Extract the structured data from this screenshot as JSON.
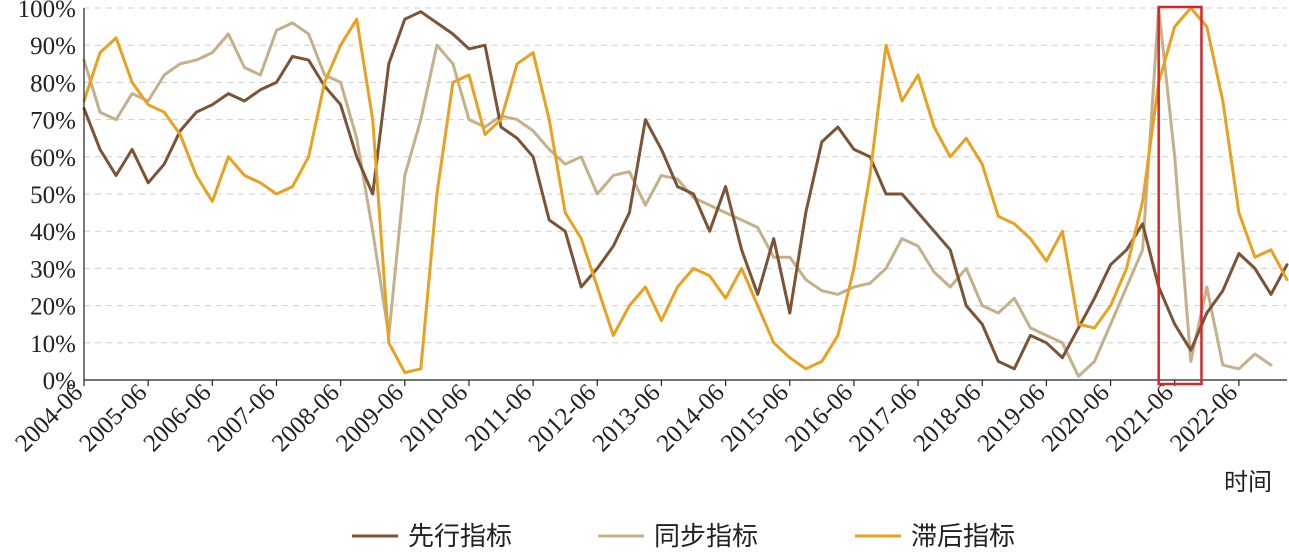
{
  "chart_data": {
    "type": "line",
    "xlabel": "时间",
    "ylabel": "",
    "ylim": [
      0,
      100
    ],
    "y_ticks": [
      "0%",
      "10%",
      "20%",
      "30%",
      "40%",
      "50%",
      "60%",
      "70%",
      "80%",
      "90%",
      "100%"
    ],
    "x_ticks": [
      "2004-06",
      "2005-06",
      "2006-06",
      "2007-06",
      "2008-06",
      "2009-06",
      "2010-06",
      "2011-06",
      "2012-06",
      "2013-06",
      "2014-06",
      "2015-06",
      "2016-06",
      "2017-06",
      "2018-06",
      "2019-06",
      "2020-06",
      "2021-06",
      "2022-06"
    ],
    "x_range": [
      "2004-06",
      "2023-03"
    ],
    "grid": "horizontal dashed",
    "legend_position": "bottom",
    "highlight_box": {
      "x_start": "2021-03",
      "x_end": "2021-11",
      "y_start": 0,
      "y_end": 100,
      "color": "#d62728"
    },
    "series": [
      {
        "name": "先行指标",
        "color": "#7b5335",
        "points": [
          [
            "2004-06",
            73
          ],
          [
            "2004-09",
            62
          ],
          [
            "2004-12",
            55
          ],
          [
            "2005-03",
            62
          ],
          [
            "2005-06",
            53
          ],
          [
            "2005-09",
            58
          ],
          [
            "2005-12",
            67
          ],
          [
            "2006-03",
            72
          ],
          [
            "2006-06",
            74
          ],
          [
            "2006-09",
            77
          ],
          [
            "2006-12",
            75
          ],
          [
            "2007-03",
            78
          ],
          [
            "2007-06",
            80
          ],
          [
            "2007-09",
            87
          ],
          [
            "2007-12",
            86
          ],
          [
            "2008-03",
            79
          ],
          [
            "2008-06",
            74
          ],
          [
            "2008-09",
            60
          ],
          [
            "2008-12",
            50
          ],
          [
            "2009-03",
            85
          ],
          [
            "2009-06",
            97
          ],
          [
            "2009-09",
            99
          ],
          [
            "2009-12",
            96
          ],
          [
            "2010-03",
            93
          ],
          [
            "2010-06",
            89
          ],
          [
            "2010-09",
            90
          ],
          [
            "2010-12",
            68
          ],
          [
            "2011-03",
            65
          ],
          [
            "2011-06",
            60
          ],
          [
            "2011-09",
            43
          ],
          [
            "2011-12",
            40
          ],
          [
            "2012-03",
            25
          ],
          [
            "2012-06",
            30
          ],
          [
            "2012-09",
            36
          ],
          [
            "2012-12",
            45
          ],
          [
            "2013-03",
            70
          ],
          [
            "2013-06",
            62
          ],
          [
            "2013-09",
            52
          ],
          [
            "2013-12",
            50
          ],
          [
            "2014-03",
            40
          ],
          [
            "2014-06",
            52
          ],
          [
            "2014-09",
            35
          ],
          [
            "2014-12",
            23
          ],
          [
            "2015-03",
            38
          ],
          [
            "2015-06",
            18
          ],
          [
            "2015-09",
            45
          ],
          [
            "2015-12",
            64
          ],
          [
            "2016-03",
            68
          ],
          [
            "2016-06",
            62
          ],
          [
            "2016-09",
            60
          ],
          [
            "2016-12",
            50
          ],
          [
            "2017-03",
            50
          ],
          [
            "2017-06",
            45
          ],
          [
            "2017-09",
            40
          ],
          [
            "2017-12",
            35
          ],
          [
            "2018-03",
            20
          ],
          [
            "2018-06",
            15
          ],
          [
            "2018-09",
            5
          ],
          [
            "2018-12",
            3
          ],
          [
            "2019-03",
            12
          ],
          [
            "2019-06",
            10
          ],
          [
            "2019-09",
            6
          ],
          [
            "2019-12",
            14
          ],
          [
            "2020-03",
            22
          ],
          [
            "2020-06",
            31
          ],
          [
            "2020-09",
            35
          ],
          [
            "2020-12",
            42
          ],
          [
            "2021-03",
            25
          ],
          [
            "2021-06",
            15
          ],
          [
            "2021-09",
            8
          ],
          [
            "2021-12",
            18
          ],
          [
            "2022-03",
            24
          ],
          [
            "2022-06",
            34
          ],
          [
            "2022-09",
            30
          ],
          [
            "2022-12",
            23
          ],
          [
            "2023-03",
            31
          ]
        ]
      },
      {
        "name": "同步指标",
        "color": "#c4b08a",
        "points": [
          [
            "2004-06",
            86
          ],
          [
            "2004-09",
            72
          ],
          [
            "2004-12",
            70
          ],
          [
            "2005-03",
            77
          ],
          [
            "2005-06",
            75
          ],
          [
            "2005-09",
            82
          ],
          [
            "2005-12",
            85
          ],
          [
            "2006-03",
            86
          ],
          [
            "2006-06",
            88
          ],
          [
            "2006-09",
            93
          ],
          [
            "2006-12",
            84
          ],
          [
            "2007-03",
            82
          ],
          [
            "2007-06",
            94
          ],
          [
            "2007-09",
            96
          ],
          [
            "2007-12",
            93
          ],
          [
            "2008-03",
            82
          ],
          [
            "2008-06",
            80
          ],
          [
            "2008-09",
            65
          ],
          [
            "2008-12",
            40
          ],
          [
            "2009-03",
            12
          ],
          [
            "2009-06",
            55
          ],
          [
            "2009-09",
            70
          ],
          [
            "2009-12",
            90
          ],
          [
            "2010-03",
            85
          ],
          [
            "2010-06",
            70
          ],
          [
            "2010-09",
            68
          ],
          [
            "2010-12",
            71
          ],
          [
            "2011-03",
            70
          ],
          [
            "2011-06",
            67
          ],
          [
            "2011-09",
            62
          ],
          [
            "2011-12",
            58
          ],
          [
            "2012-03",
            60
          ],
          [
            "2012-06",
            50
          ],
          [
            "2012-09",
            55
          ],
          [
            "2012-12",
            56
          ],
          [
            "2013-03",
            47
          ],
          [
            "2013-06",
            55
          ],
          [
            "2013-09",
            54
          ],
          [
            "2013-12",
            49
          ],
          [
            "2014-03",
            47
          ],
          [
            "2014-06",
            45
          ],
          [
            "2014-09",
            43
          ],
          [
            "2014-12",
            41
          ],
          [
            "2015-03",
            33
          ],
          [
            "2015-06",
            33
          ],
          [
            "2015-09",
            27
          ],
          [
            "2015-12",
            24
          ],
          [
            "2016-03",
            23
          ],
          [
            "2016-06",
            25
          ],
          [
            "2016-09",
            26
          ],
          [
            "2016-12",
            30
          ],
          [
            "2017-03",
            38
          ],
          [
            "2017-06",
            36
          ],
          [
            "2017-09",
            29
          ],
          [
            "2017-12",
            25
          ],
          [
            "2018-03",
            30
          ],
          [
            "2018-06",
            20
          ],
          [
            "2018-09",
            18
          ],
          [
            "2018-12",
            22
          ],
          [
            "2019-03",
            14
          ],
          [
            "2019-06",
            12
          ],
          [
            "2019-09",
            10
          ],
          [
            "2019-12",
            1
          ],
          [
            "2020-03",
            5
          ],
          [
            "2020-06",
            15
          ],
          [
            "2020-09",
            25
          ],
          [
            "2020-12",
            35
          ],
          [
            "2021-03",
            100
          ],
          [
            "2021-06",
            60
          ],
          [
            "2021-09",
            5
          ],
          [
            "2021-12",
            25
          ],
          [
            "2022-03",
            4
          ],
          [
            "2022-06",
            3
          ],
          [
            "2022-09",
            7
          ],
          [
            "2022-12",
            4
          ]
        ]
      },
      {
        "name": "滞后指标",
        "color": "#e6a220",
        "points": [
          [
            "2004-06",
            75
          ],
          [
            "2004-09",
            88
          ],
          [
            "2004-12",
            92
          ],
          [
            "2005-03",
            80
          ],
          [
            "2005-06",
            74
          ],
          [
            "2005-09",
            72
          ],
          [
            "2005-12",
            66
          ],
          [
            "2006-03",
            55
          ],
          [
            "2006-06",
            48
          ],
          [
            "2006-09",
            60
          ],
          [
            "2006-12",
            55
          ],
          [
            "2007-03",
            53
          ],
          [
            "2007-06",
            50
          ],
          [
            "2007-09",
            52
          ],
          [
            "2007-12",
            60
          ],
          [
            "2008-03",
            80
          ],
          [
            "2008-06",
            90
          ],
          [
            "2008-09",
            97
          ],
          [
            "2008-12",
            70
          ],
          [
            "2009-03",
            10
          ],
          [
            "2009-06",
            2
          ],
          [
            "2009-09",
            3
          ],
          [
            "2009-12",
            50
          ],
          [
            "2010-03",
            80
          ],
          [
            "2010-06",
            82
          ],
          [
            "2010-09",
            66
          ],
          [
            "2010-12",
            70
          ],
          [
            "2011-03",
            85
          ],
          [
            "2011-06",
            88
          ],
          [
            "2011-09",
            70
          ],
          [
            "2011-12",
            45
          ],
          [
            "2012-03",
            38
          ],
          [
            "2012-06",
            25
          ],
          [
            "2012-09",
            12
          ],
          [
            "2012-12",
            20
          ],
          [
            "2013-03",
            25
          ],
          [
            "2013-06",
            16
          ],
          [
            "2013-09",
            25
          ],
          [
            "2013-12",
            30
          ],
          [
            "2014-03",
            28
          ],
          [
            "2014-06",
            22
          ],
          [
            "2014-09",
            30
          ],
          [
            "2014-12",
            20
          ],
          [
            "2015-03",
            10
          ],
          [
            "2015-06",
            6
          ],
          [
            "2015-09",
            3
          ],
          [
            "2015-12",
            5
          ],
          [
            "2016-03",
            12
          ],
          [
            "2016-06",
            30
          ],
          [
            "2016-09",
            55
          ],
          [
            "2016-12",
            90
          ],
          [
            "2017-03",
            75
          ],
          [
            "2017-06",
            82
          ],
          [
            "2017-09",
            68
          ],
          [
            "2017-12",
            60
          ],
          [
            "2018-03",
            65
          ],
          [
            "2018-06",
            58
          ],
          [
            "2018-09",
            44
          ],
          [
            "2018-12",
            42
          ],
          [
            "2019-03",
            38
          ],
          [
            "2019-06",
            32
          ],
          [
            "2019-09",
            40
          ],
          [
            "2019-12",
            15
          ],
          [
            "2020-03",
            14
          ],
          [
            "2020-06",
            20
          ],
          [
            "2020-09",
            30
          ],
          [
            "2020-12",
            48
          ],
          [
            "2021-03",
            80
          ],
          [
            "2021-06",
            95
          ],
          [
            "2021-09",
            100
          ],
          [
            "2021-12",
            95
          ],
          [
            "2022-03",
            75
          ],
          [
            "2022-06",
            45
          ],
          [
            "2022-09",
            33
          ],
          [
            "2022-12",
            35
          ],
          [
            "2023-03",
            27
          ]
        ]
      }
    ]
  }
}
